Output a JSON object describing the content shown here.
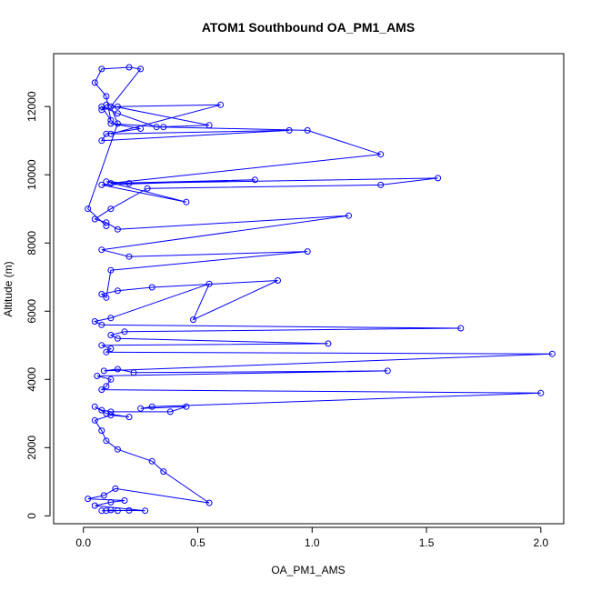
{
  "chart_data": {
    "type": "scatter",
    "title": "ATOM1 Southbound OA_PM1_AMS",
    "xlabel": "OA_PM1_AMS",
    "ylabel": "Altitude (m)",
    "xlim": [
      -0.13,
      2.1
    ],
    "ylim": [
      -230,
      13550
    ],
    "x_ticks": [
      0.0,
      0.5,
      1.0,
      1.5,
      2.0
    ],
    "x_tick_labels": [
      "0.0",
      "0.5",
      "1.0",
      "1.5",
      "2.0"
    ],
    "y_ticks": [
      0,
      2000,
      4000,
      6000,
      8000,
      10000,
      12000
    ],
    "y_tick_labels": [
      "0",
      "2000",
      "4000",
      "6000",
      "8000",
      "10000",
      "12000"
    ],
    "grid": false,
    "legend": "none",
    "marker": "open-circle",
    "connected": true,
    "color": "#0000ff",
    "series": [
      {
        "x": [
          0.1,
          0.12,
          0.15,
          0.08,
          0.2,
          0.27,
          0.05,
          0.12,
          0.18,
          0.02,
          0.09,
          0.14,
          0.55,
          0.35,
          0.3,
          0.15,
          0.1,
          0.08,
          0.05,
          0.12,
          0.2,
          0.1,
          0.05,
          0.08,
          0.12,
          0.38,
          0.45,
          0.25,
          0.3,
          2.0,
          0.08,
          0.1,
          0.12,
          0.06,
          1.33,
          0.22,
          0.15,
          0.09,
          2.05,
          0.1,
          0.12,
          0.08,
          1.07,
          0.15,
          0.12,
          0.18,
          1.65,
          0.08,
          0.05,
          0.12,
          0.55,
          0.48,
          0.85,
          0.3,
          0.15,
          0.08,
          0.1,
          0.12,
          0.98,
          0.2,
          0.08,
          1.16,
          0.15,
          0.1,
          0.05,
          0.12,
          0.28,
          1.3,
          1.55,
          0.2,
          0.1,
          0.45,
          0.08,
          0.75,
          0.12,
          1.3,
          0.98,
          0.35,
          0.12,
          0.25,
          0.1,
          0.08,
          0.9,
          0.12,
          0.6,
          0.15,
          0.08,
          0.1,
          0.55,
          0.32,
          0.15,
          0.08,
          0.12,
          0.1,
          0.05,
          0.08,
          0.2,
          0.25,
          0.12,
          0.15,
          0.02,
          0.1
        ],
        "y": [
          150,
          170,
          150,
          150,
          160,
          150,
          300,
          400,
          450,
          500,
          600,
          800,
          380,
          1300,
          1600,
          1950,
          2200,
          2500,
          2800,
          2950,
          2900,
          3000,
          3200,
          3100,
          3050,
          3050,
          3200,
          3150,
          3200,
          3600,
          3700,
          3800,
          4000,
          4100,
          4250,
          4200,
          4300,
          4250,
          4750,
          4800,
          4900,
          5000,
          5050,
          5200,
          5300,
          5400,
          5500,
          5600,
          5700,
          5800,
          6800,
          5750,
          6900,
          6700,
          6600,
          6500,
          6400,
          7200,
          7750,
          7600,
          7800,
          8800,
          8400,
          8600,
          8700,
          9000,
          9600,
          9700,
          9900,
          9750,
          9800,
          9200,
          9700,
          9850,
          9750,
          10600,
          11300,
          11400,
          11500,
          11350,
          11200,
          11000,
          11300,
          11200,
          12050,
          12000,
          11900,
          12050,
          11450,
          11400,
          11800,
          12000,
          11600,
          12300,
          12700,
          13100,
          13150,
          13100,
          12000,
          11500,
          9000,
          8500
        ]
      }
    ]
  }
}
